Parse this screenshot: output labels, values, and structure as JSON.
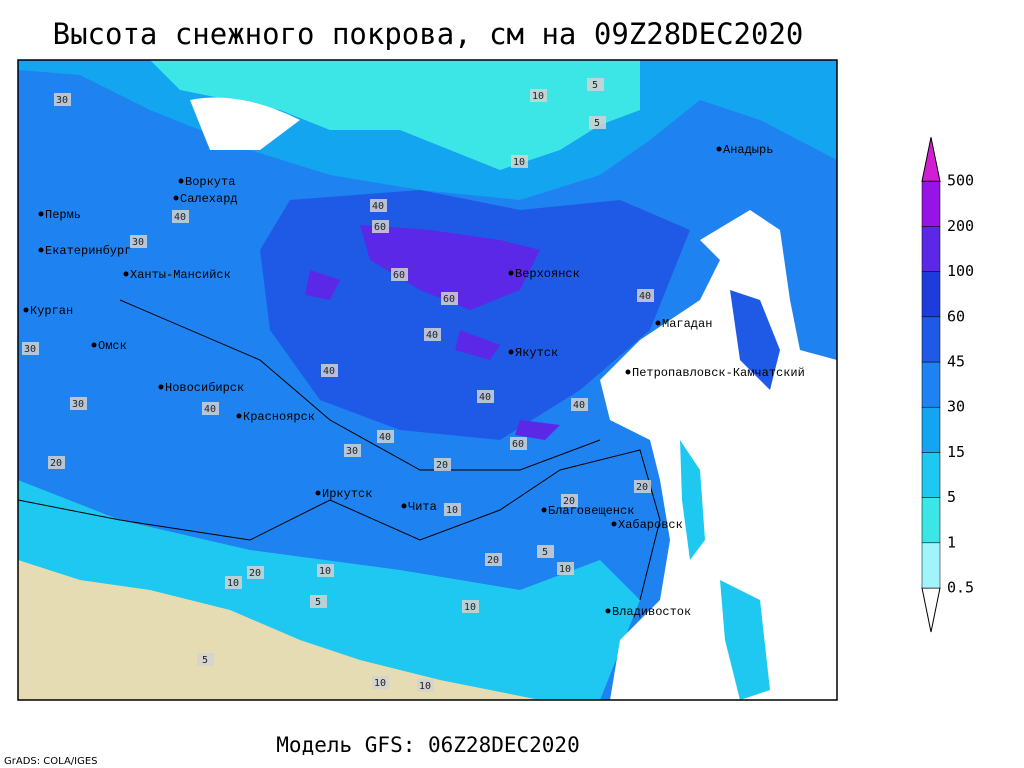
{
  "title": "Высота снежного покрова, см на 09Z28DEC2020",
  "model": "Модель GFS: 06Z28DEC2020",
  "credit": "GrADS: COLA/IGES",
  "legend": {
    "levels": [
      0.5,
      1,
      5,
      15,
      30,
      45,
      60,
      100,
      200,
      500
    ],
    "colors": [
      "#ffffff",
      "#a0f4fa",
      "#3ce6e6",
      "#1ec8f0",
      "#14a5f0",
      "#1e82f0",
      "#1e5ae6",
      "#1e3cdc",
      "#5a28e6",
      "#9614e6",
      "#d21ed2"
    ]
  },
  "cities": [
    "Воркута",
    "Салехард",
    "Пермь",
    "Екатеринбург",
    "Ханты-Мансийск",
    "Курган",
    "Омск",
    "Новосибирск",
    "Красноярск",
    "Иркутск",
    "Чита",
    "Верхоянск",
    "Якутск",
    "Магадан",
    "Анадырь",
    "Петропавловск-Камчатский",
    "Благовещенск",
    "Хабаровск",
    "Владивосток"
  ],
  "contour_labels": [
    30,
    10,
    5,
    5,
    10,
    40,
    60,
    60,
    60,
    40,
    40,
    40,
    40,
    60,
    40,
    30,
    20,
    10,
    20,
    20,
    5,
    10,
    20,
    10,
    5,
    10,
    20,
    10,
    5,
    10,
    10,
    30,
    30,
    20,
    40,
    40,
    30,
    40
  ]
}
